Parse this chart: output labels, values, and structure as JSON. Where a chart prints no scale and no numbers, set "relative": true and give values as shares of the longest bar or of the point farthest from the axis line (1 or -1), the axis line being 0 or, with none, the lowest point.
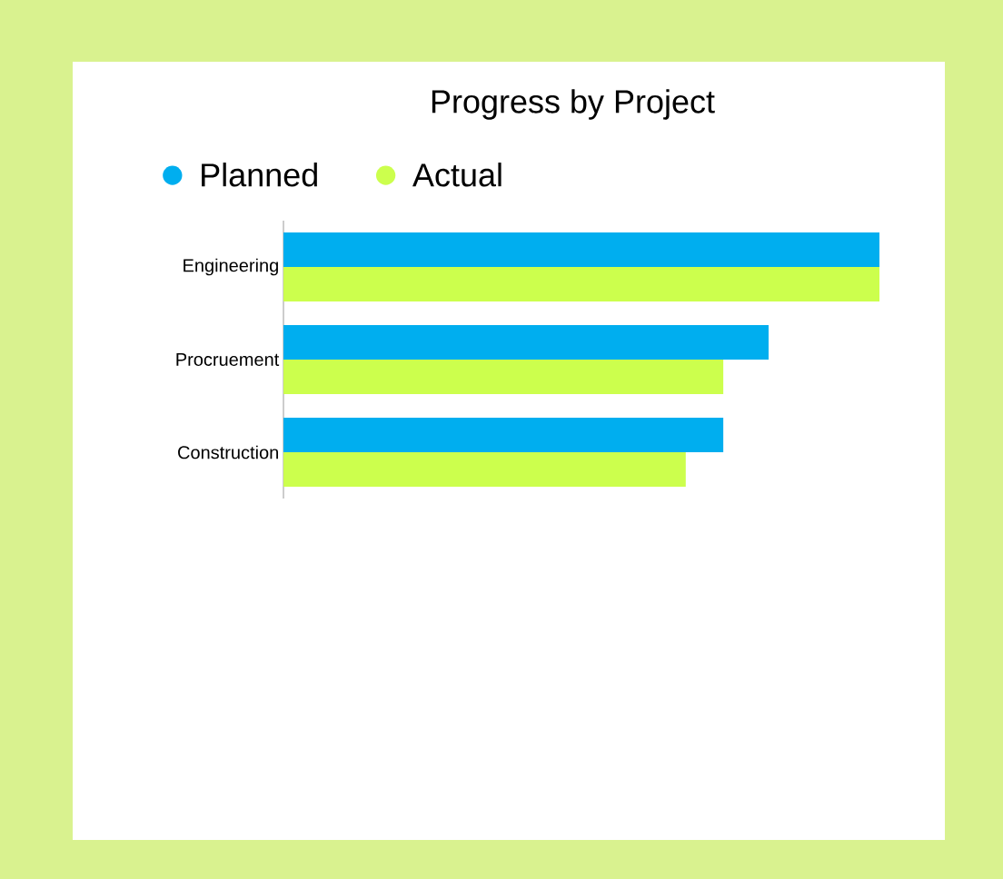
{
  "chart_data": {
    "type": "bar",
    "orientation": "horizontal",
    "relative": true,
    "title": "Progress by Project",
    "categories": [
      "Engineering",
      "Procruement",
      "Construction"
    ],
    "series": [
      {
        "name": "Planned",
        "color": "#00aeef",
        "values": [
          1,
          0.814,
          0.738
        ]
      },
      {
        "name": "Actual",
        "color": "#ccff4d",
        "values": [
          1,
          0.738,
          0.675
        ]
      }
    ],
    "legend": "top left"
  }
}
